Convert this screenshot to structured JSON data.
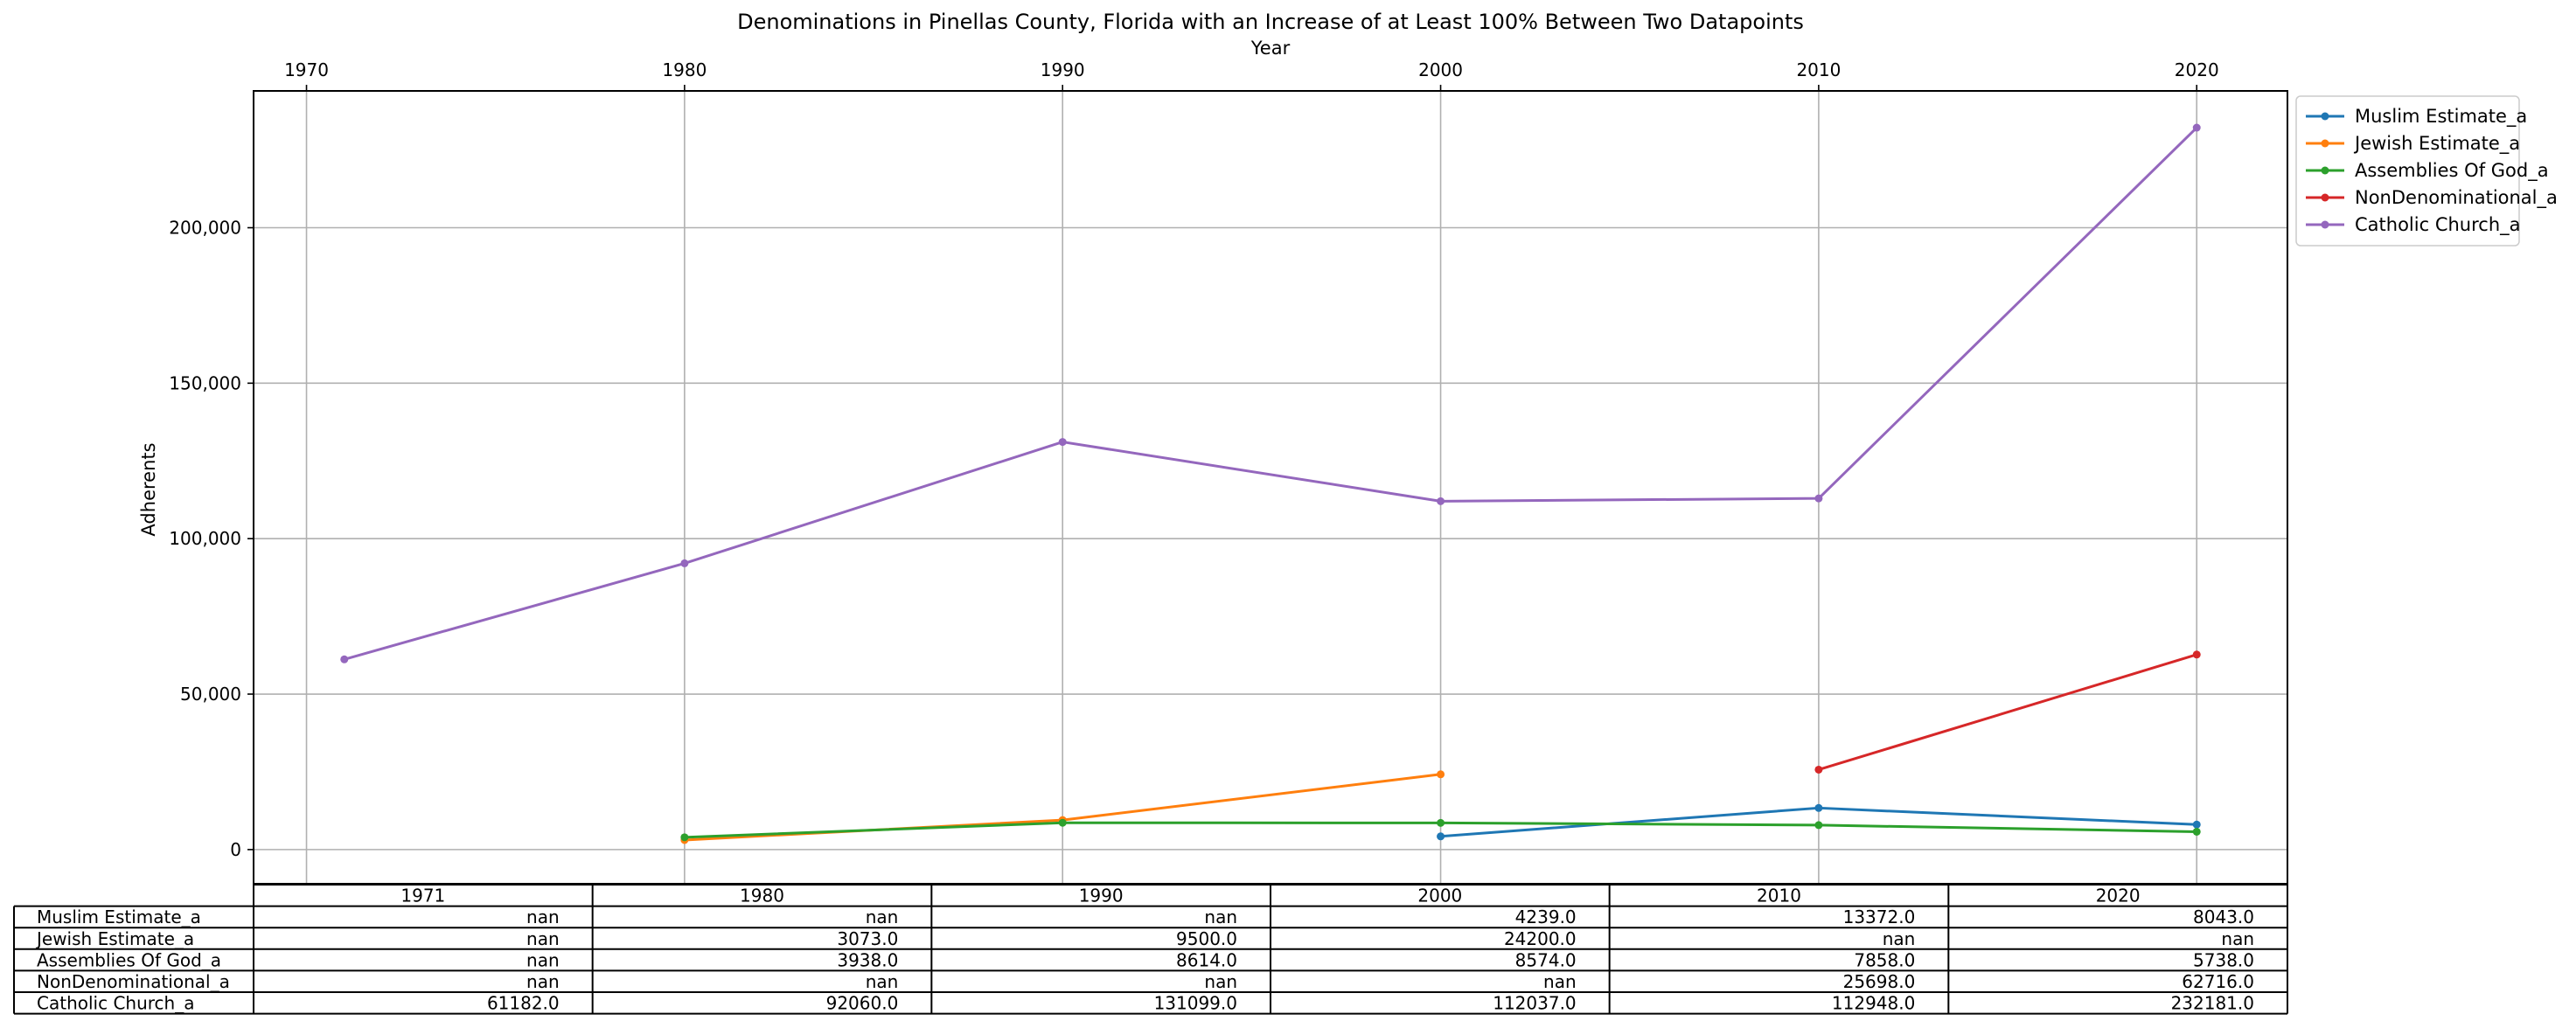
{
  "chart_data": {
    "type": "line",
    "title": "Denominations in Pinellas County, Florida with an Increase of at Least 100% Between Two Datapoints",
    "xlabel": "Year",
    "ylabel": "Adherents",
    "x_ticks": [
      1970,
      1980,
      1990,
      2000,
      2010,
      2020
    ],
    "x_tick_labels": [
      "1970",
      "1980",
      "1990",
      "2000",
      "2010",
      "2020"
    ],
    "y_ticks": [
      0,
      50000,
      100000,
      150000,
      200000
    ],
    "y_tick_labels": [
      "0",
      "50,000",
      "100,000",
      "150,000",
      "200,000"
    ],
    "xlim": [
      1968.6,
      2022.4
    ],
    "ylim": [
      -11000,
      244000
    ],
    "grid": true,
    "legend_position": "outside-top-right",
    "x": [
      1971,
      1980,
      1990,
      2000,
      2010,
      2020
    ],
    "series": [
      {
        "name": "Muslim Estimate_a",
        "color": "#1f77b4",
        "values": [
          null,
          null,
          null,
          4239.0,
          13372.0,
          8043.0
        ],
        "cells": [
          "nan",
          "nan",
          "nan",
          "4239.0",
          "13372.0",
          "8043.0"
        ]
      },
      {
        "name": "Jewish Estimate_a",
        "color": "#ff7f0e",
        "values": [
          null,
          3073.0,
          9500.0,
          24200.0,
          null,
          null
        ],
        "cells": [
          "nan",
          "3073.0",
          "9500.0",
          "24200.0",
          "nan",
          "nan"
        ]
      },
      {
        "name": "Assemblies Of God_a",
        "color": "#2ca02c",
        "values": [
          null,
          3938.0,
          8614.0,
          8574.0,
          7858.0,
          5738.0
        ],
        "cells": [
          "nan",
          "3938.0",
          "8614.0",
          "8574.0",
          "7858.0",
          "5738.0"
        ]
      },
      {
        "name": "NonDenominational_a",
        "color": "#d62728",
        "values": [
          null,
          null,
          null,
          null,
          25698.0,
          62716.0
        ],
        "cells": [
          "nan",
          "nan",
          "nan",
          "nan",
          "25698.0",
          "62716.0"
        ]
      },
      {
        "name": "Catholic Church_a",
        "color": "#9467bd",
        "values": [
          61182.0,
          92060.0,
          131099.0,
          112037.0,
          112948.0,
          232181.0
        ],
        "cells": [
          "61182.0",
          "92060.0",
          "131099.0",
          "112037.0",
          "112948.0",
          "232181.0"
        ]
      }
    ],
    "table": {
      "columns": [
        "1971",
        "1980",
        "1990",
        "2000",
        "2010",
        "2020"
      ]
    }
  }
}
